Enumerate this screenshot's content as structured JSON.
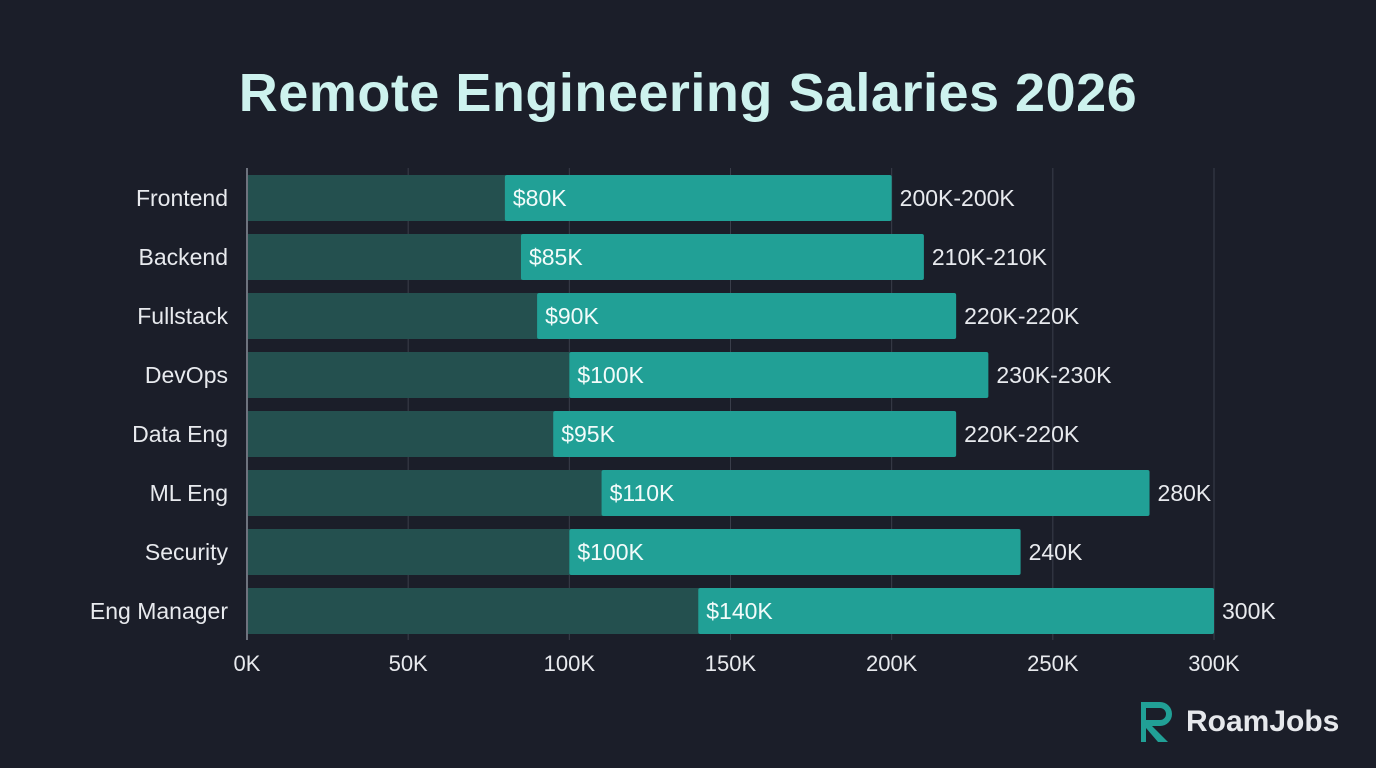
{
  "chart_data": {
    "type": "bar",
    "orientation": "horizontal",
    "title": "Remote Engineering Salaries 2026",
    "categories": [
      "Frontend",
      "Backend",
      "Fullstack",
      "DevOps",
      "Data Eng",
      "ML Eng",
      "Security",
      "Eng Manager"
    ],
    "series": [
      {
        "values_min": [
          80,
          85,
          90,
          100,
          95,
          110,
          100,
          140
        ],
        "values_max": [
          200,
          210,
          220,
          230,
          220,
          280,
          240,
          300
        ]
      }
    ],
    "min_labels": [
      "$80K",
      "$85K",
      "$90K",
      "$100K",
      "$95K",
      "$110K",
      "$100K",
      "$140K"
    ],
    "max_labels": [
      "200K-200K",
      "210K-210K",
      "220K-220K",
      "230K-230K",
      "220K-220K",
      "280K",
      "240K",
      "300K"
    ],
    "xlim": [
      0,
      300
    ],
    "xticks": [
      0,
      50,
      100,
      150,
      200,
      250,
      300
    ],
    "xtick_labels": [
      "0K",
      "50K",
      "100K",
      "150K",
      "200K",
      "250K",
      "300K"
    ],
    "xlabel": "",
    "ylabel": "",
    "grid": "vertical",
    "colors": {
      "background": "#1b1e29",
      "base_bar": "#24504f",
      "range_bar": "#21a096",
      "title": "#cdf2ee",
      "text": "#e8eaee",
      "grid": "#3a3e4a"
    }
  },
  "brand": {
    "name": "RoamJobs",
    "logo_icon": "r-logo-icon",
    "logo_color": "#21a096"
  }
}
